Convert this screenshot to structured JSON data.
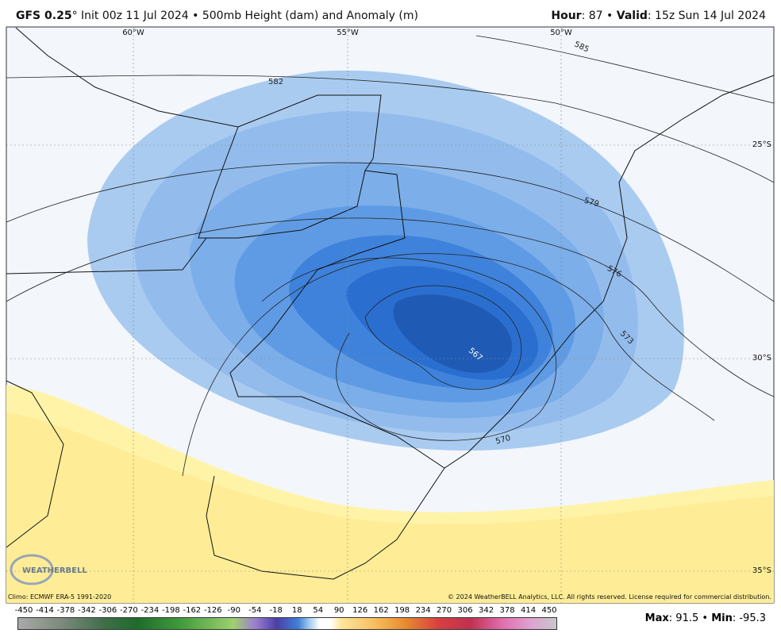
{
  "header": {
    "model": "GFS 0.25",
    "title": "° Init 00z 11 Jul 2024 • 500mb Height (dam) and Anomaly (m)",
    "hour_label": "Hour",
    "hour": ": 87 •",
    "valid_label": "Valid",
    "valid": ": 15z Sun 14 Jul 2024"
  },
  "map": {
    "longitudes": [
      "60°W",
      "55°W",
      "50°W"
    ],
    "latitudes": [
      "25°S",
      "30°S",
      "35°S"
    ],
    "contours": [
      "585",
      "582",
      "579",
      "576",
      "573",
      "570",
      "567"
    ],
    "logo": "WEATHERBELL",
    "climo": "Climo: ECMWF ERA-5 1991-2020",
    "copyright": "© 2024 WeatherBELL Analytics, LLC. All rights reserved. License required for commercial distribution."
  },
  "colorbar": {
    "labels": [
      -450,
      -414,
      -378,
      -342,
      -306,
      -270,
      -234,
      -198,
      -162,
      -126,
      -90,
      -54,
      -18,
      18,
      54,
      90,
      126,
      162,
      198,
      234,
      270,
      306,
      342,
      378,
      414,
      450
    ]
  },
  "footer": {
    "max_label": "Max",
    "max": ": 91.5 •",
    "min_label": "Min",
    "min": ": -95.3"
  }
}
